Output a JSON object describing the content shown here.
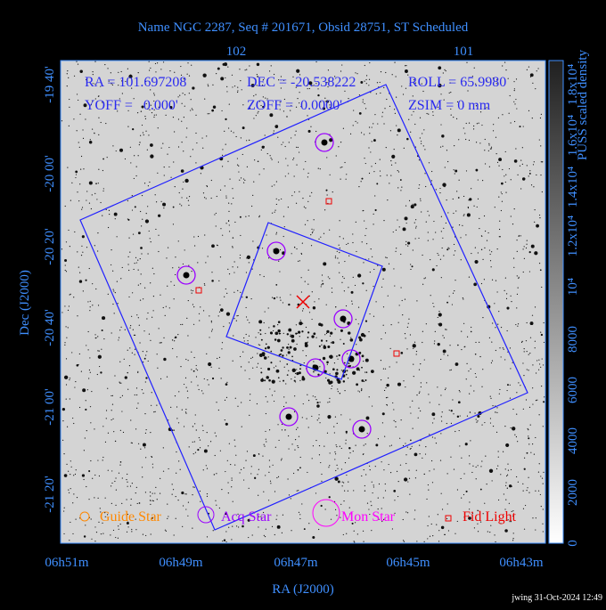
{
  "title": "Name NGC 2287, Seq # 201671, Obsid 28751, ST Scheduled",
  "top_axis": {
    "labels": [
      "102",
      "101"
    ]
  },
  "bottom_axis": {
    "title": "RA (J2000)",
    "labels": [
      "06h51m",
      "06h49m",
      "06h47m",
      "06h45m",
      "06h43m"
    ]
  },
  "left_axis": {
    "title": "Dec (J2000)",
    "labels": [
      "-19 40'",
      "-20 00'",
      "-20 20'",
      "-20 40'",
      "-21 00'",
      "-21 20'"
    ]
  },
  "info": {
    "rows": [
      [
        "RA = 101.697208",
        "DEC = -20.538222",
        "ROLL = 65.9980"
      ],
      [
        "YOFF =   0.000'",
        "ZOFF =  0.0000'",
        "ZSIM = 0 mm"
      ]
    ]
  },
  "legend": [
    "Guide Star",
    "Acq Star",
    "Mon Star",
    "Fid Light"
  ],
  "colorbar": {
    "title": "PUSS scaled density",
    "labels": [
      "0",
      "2000",
      "4000",
      "6000",
      "8000",
      "10⁴",
      "1.2x10⁴",
      "1.4x10⁴",
      "1.6x10⁴",
      "1.8x10⁴"
    ]
  },
  "footer": "jwing 31-Oct-2024 12:49"
}
